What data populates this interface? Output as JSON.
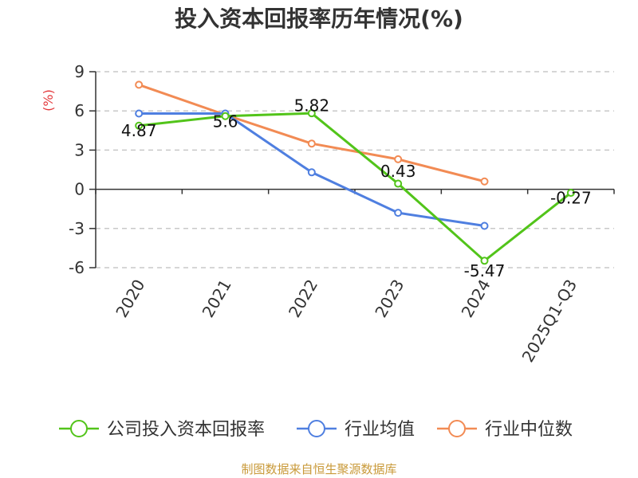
{
  "chart_data": {
    "type": "line",
    "title": "投入资本回报率历年情况(%)",
    "ylabel": "(%)",
    "categories": [
      "2020",
      "2021",
      "2022",
      "2023",
      "2024",
      "2025Q1-Q3"
    ],
    "ylim": [
      -6,
      9
    ],
    "yticks": [
      9,
      6,
      3,
      0,
      -3,
      -6
    ],
    "grid": true,
    "legend_position": "bottom",
    "series": [
      {
        "name": "公司投入资本回报率",
        "color": "#52c41a",
        "values": [
          4.87,
          5.6,
          5.82,
          0.43,
          -5.47,
          -0.27
        ],
        "labels": [
          "4.87",
          "5.6",
          "5.82",
          "0.43",
          "-5.47",
          "-0.27"
        ]
      },
      {
        "name": "行业均值",
        "color": "#4f7fe0",
        "values": [
          5.8,
          5.8,
          1.3,
          -1.8,
          -2.8,
          null
        ]
      },
      {
        "name": "行业中位数",
        "color": "#f28b54",
        "values": [
          8.0,
          5.7,
          3.5,
          2.3,
          0.6,
          null
        ]
      }
    ],
    "source": "制图数据来自恒生聚源数据库"
  }
}
